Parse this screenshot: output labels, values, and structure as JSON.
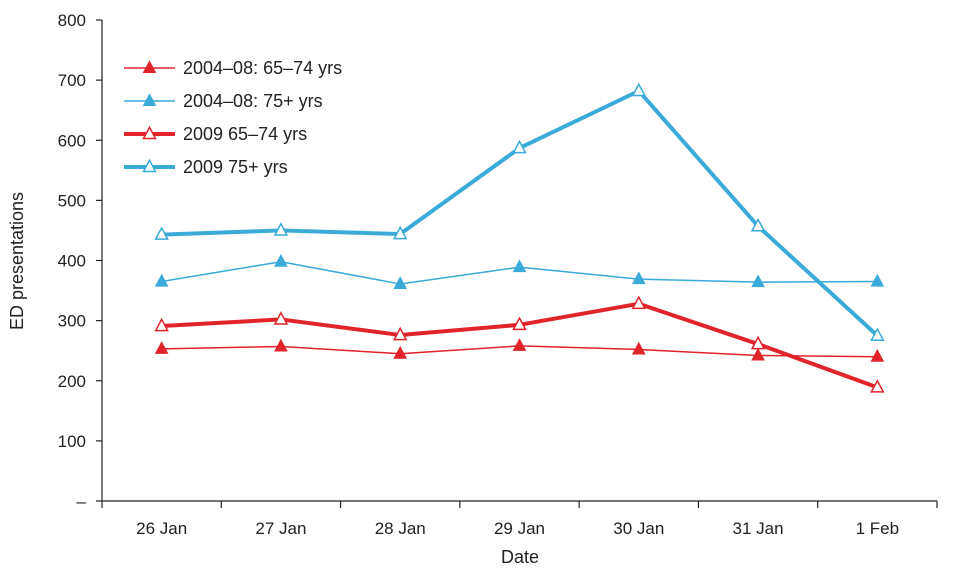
{
  "chart_data": {
    "type": "line",
    "xlabel": "Date",
    "ylabel": "ED presentations",
    "categories": [
      "26 Jan",
      "27 Jan",
      "28 Jan",
      "29 Jan",
      "30 Jan",
      "31 Jan",
      "1 Feb"
    ],
    "ylim": [
      0,
      800
    ],
    "y_ticks": [
      {
        "value": 0,
        "label": "–"
      },
      {
        "value": 100,
        "label": "100"
      },
      {
        "value": 200,
        "label": "200"
      },
      {
        "value": 300,
        "label": "300"
      },
      {
        "value": 400,
        "label": "400"
      },
      {
        "value": 500,
        "label": "500"
      },
      {
        "value": 600,
        "label": "600"
      },
      {
        "value": 700,
        "label": "700"
      },
      {
        "value": 800,
        "label": "800"
      }
    ],
    "grid": false,
    "legend_position": "top-left",
    "series": [
      {
        "name": "2004–08: 65–74 yrs",
        "color": "#e0242a",
        "line": "thin",
        "marker": "filled-triangle",
        "values": [
          253,
          257,
          245,
          258,
          252,
          242,
          240
        ]
      },
      {
        "name": "2004–08: 75+ yrs",
        "color": "#3aaad9",
        "line": "thin",
        "marker": "filled-triangle",
        "values": [
          365,
          398,
          361,
          389,
          369,
          364,
          365
        ]
      },
      {
        "name": "2009 65–74 yrs",
        "color": "#e0242a",
        "line": "thick",
        "marker": "open-triangle",
        "values": [
          291,
          302,
          276,
          293,
          328,
          261,
          189
        ]
      },
      {
        "name": "2009 75+ yrs",
        "color": "#3aaad9",
        "line": "thick",
        "marker": "open-triangle",
        "values": [
          443,
          450,
          444,
          587,
          682,
          457,
          275
        ]
      }
    ]
  }
}
